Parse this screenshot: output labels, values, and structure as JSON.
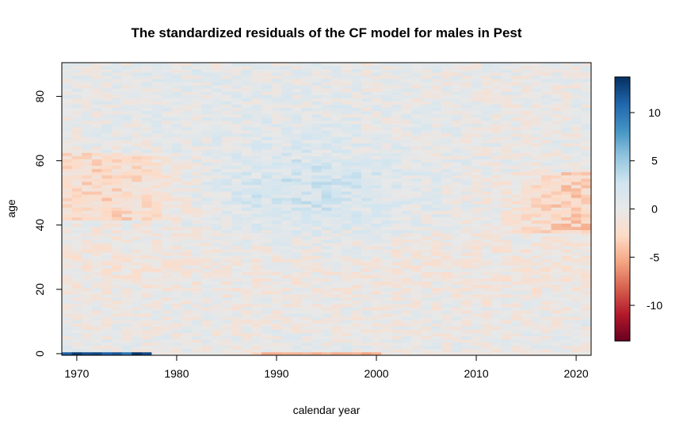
{
  "chart_data": {
    "type": "heatmap",
    "title": "The standardized residuals of the CF model for males in Pest",
    "xlabel": "calendar year",
    "ylabel": "age",
    "x_range": [
      1969,
      2021
    ],
    "y_range": [
      0,
      90
    ],
    "xlim": [
      1968.5,
      2021.5
    ],
    "ylim": [
      -0.5,
      90.5
    ],
    "x_ticks": [
      1970,
      1980,
      1990,
      2000,
      2010,
      2020
    ],
    "y_ticks": [
      0,
      20,
      40,
      60,
      80
    ],
    "colorbar": {
      "range": [
        -13.7,
        13.7
      ],
      "ticks": [
        10,
        5,
        0,
        -5,
        -10
      ],
      "palette": "RdBu",
      "colors": [
        "#67001f",
        "#b2182b",
        "#d6604d",
        "#f4a582",
        "#fddbc7",
        "#e8e8e8",
        "#d1e5f0",
        "#92c5de",
        "#4393c3",
        "#2166ac",
        "#053061"
      ]
    },
    "value_summary": {
      "early_years_ages_45_60": -2.5,
      "years_1985_2000_ages_35_65": 2.5,
      "late_years_ages_40_55": -3,
      "age_0_years_1969_1977": 12,
      "age_0_years_1988_2000": -4,
      "background": "mostly between -2 and 2"
    }
  }
}
